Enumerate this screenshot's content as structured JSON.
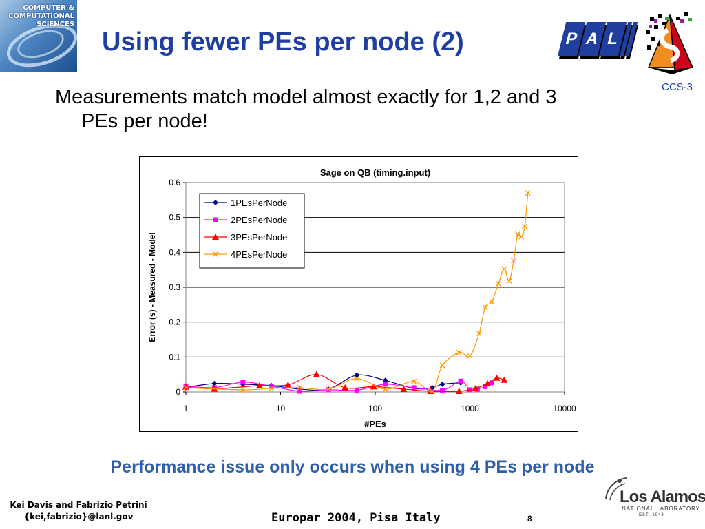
{
  "slide": {
    "title": "Using fewer PEs per node (2)",
    "bullet": "Measurements match model almost exactly for 1,2 and 3",
    "bullet_cont": "PEs per node!",
    "note": "Performance issue only occurs when using 4 PEs per node",
    "footer": {
      "author": "Kei Davis and Fabrizio Petrini",
      "email": "{kei,fabrizio}@lanl.gov",
      "conference": "Europar 2004, Pisa Italy",
      "page": "8"
    },
    "logos": {
      "ccs_line1": "COMPUTER &",
      "ccs_line2": "COMPUTATIONAL",
      "ccs_line3": "SCIENCES",
      "pal_letters": [
        "P",
        "A",
        "L"
      ],
      "ccs3": "CCS-3",
      "lanl_name": "Los Alamos",
      "lanl_sub": "NATIONAL LABORATORY",
      "lanl_est": "EST. 1943"
    },
    "colors": {
      "title": "#1f3fa0",
      "note": "#2f5fa8"
    }
  },
  "chart_data": {
    "type": "line",
    "title": "Sage on QB (timing.input)",
    "xlabel": "#PEs",
    "ylabel": "Error (s) - Measured - Model",
    "x_scale": "log",
    "xlim": [
      1,
      10000
    ],
    "ylim": [
      0,
      0.6
    ],
    "x_ticks": [
      "1",
      "10",
      "100",
      "1000",
      "10000"
    ],
    "y_ticks": [
      "0",
      "0.1",
      "0.2",
      "0.3",
      "0.4",
      "0.5",
      "0.6"
    ],
    "grid": "horizontal",
    "legend": "top-left",
    "series": [
      {
        "name": "1PEsPerNode",
        "color": "#000080",
        "marker": "diamond",
        "x": [
          1,
          2,
          4,
          8,
          16,
          32,
          64,
          128,
          256,
          400,
          512,
          800
        ],
        "y": [
          0.013,
          0.024,
          0.022,
          0.018,
          0.008,
          0.008,
          0.048,
          0.033,
          0.01,
          0.012,
          0.022,
          0.026
        ]
      },
      {
        "name": "2PEsPerNode",
        "color": "#ff00ff",
        "marker": "square",
        "x": [
          1,
          2,
          4,
          8,
          16,
          32,
          64,
          128,
          256,
          512,
          800,
          1000,
          1200,
          1450,
          1700
        ],
        "y": [
          0.017,
          0.012,
          0.028,
          0.016,
          0.002,
          0.006,
          0.005,
          0.022,
          0.012,
          0.005,
          0.031,
          0.006,
          0.008,
          0.015,
          0.026
        ]
      },
      {
        "name": "3PEsPerNode",
        "color": "#ff0000",
        "marker": "triangle",
        "x": [
          1,
          2,
          6,
          12,
          24,
          48,
          96,
          200,
          384,
          768,
          1152,
          1536,
          1920,
          2304
        ],
        "y": [
          0.014,
          0.009,
          0.018,
          0.02,
          0.05,
          0.012,
          0.015,
          0.008,
          0.002,
          0.002,
          0.01,
          0.024,
          0.04,
          0.034
        ]
      },
      {
        "name": "4PEsPerNode",
        "color": "#ff9900",
        "marker": "x",
        "x": [
          1,
          4,
          8,
          16,
          32,
          64,
          128,
          256,
          400,
          512,
          768,
          1000,
          1250,
          1450,
          1700,
          2000,
          2300,
          2600,
          2900,
          3200,
          3500,
          3800,
          4096
        ],
        "y": [
          0.012,
          0.006,
          0.01,
          0.012,
          0.008,
          0.038,
          0.008,
          0.03,
          0.002,
          0.076,
          0.113,
          0.103,
          0.168,
          0.242,
          0.258,
          0.31,
          0.352,
          0.318,
          0.376,
          0.452,
          0.445,
          0.475,
          0.57
        ]
      }
    ]
  }
}
